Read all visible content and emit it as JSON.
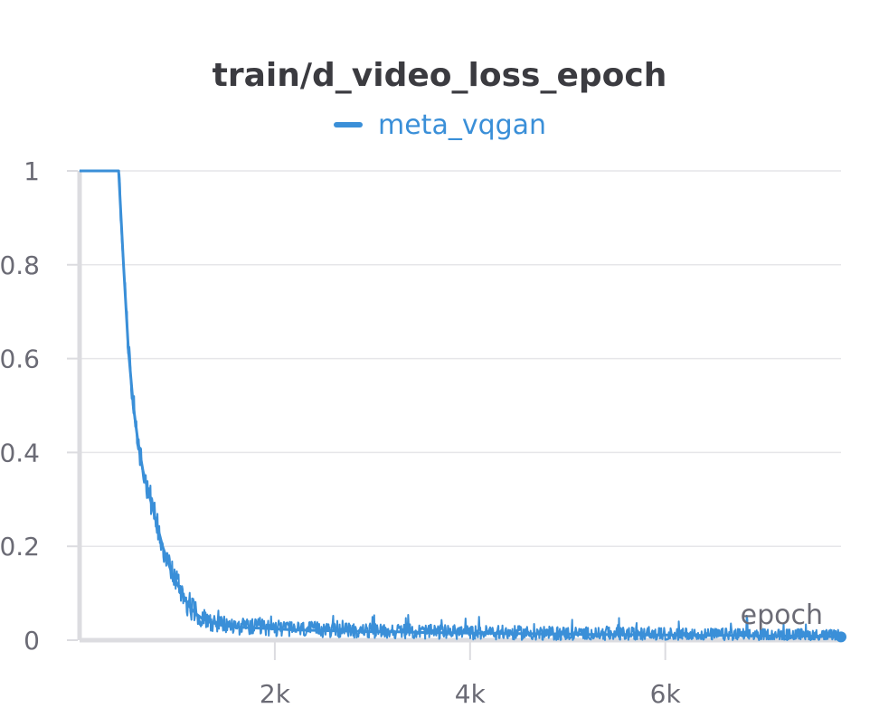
{
  "chart_data": {
    "type": "line",
    "title": "train/d_video_loss_epoch",
    "xlabel": "epoch",
    "ylabel": "",
    "xlim": [
      0,
      7800
    ],
    "ylim": [
      0,
      1
    ],
    "x_ticks": [
      2000,
      4000,
      6000
    ],
    "x_tick_labels": [
      "2k",
      "4k",
      "6k"
    ],
    "y_ticks": [
      0,
      0.2,
      0.4,
      0.6,
      0.8,
      1
    ],
    "y_tick_labels": [
      "0",
      "0.2",
      "0.4",
      "0.6",
      "0.8",
      "1"
    ],
    "grid": true,
    "legend": "top-center",
    "series": [
      {
        "name": "meta_vqgan",
        "color": "#3a8fd8",
        "x": [
          0,
          100,
          200,
          300,
          400,
          450,
          500,
          550,
          600,
          650,
          700,
          750,
          800,
          850,
          900,
          950,
          1000,
          1050,
          1100,
          1150,
          1200,
          1250,
          1300,
          1350,
          1400,
          1450,
          1500,
          1600,
          1700,
          1800,
          1900,
          2000,
          2200,
          2400,
          2600,
          2800,
          3000,
          3200,
          3400,
          3600,
          3800,
          4000,
          4200,
          4400,
          4600,
          4800,
          5000,
          5200,
          5400,
          5600,
          5800,
          6000,
          6200,
          6400,
          6600,
          6800,
          7000,
          7200,
          7400,
          7600,
          7800
        ],
        "y": [
          1.0,
          1.0,
          1.0,
          1.0,
          1.0,
          0.8,
          0.62,
          0.5,
          0.42,
          0.36,
          0.32,
          0.28,
          0.24,
          0.2,
          0.17,
          0.14,
          0.12,
          0.1,
          0.08,
          0.065,
          0.055,
          0.047,
          0.042,
          0.038,
          0.035,
          0.032,
          0.03,
          0.028,
          0.027,
          0.026,
          0.025,
          0.024,
          0.022,
          0.021,
          0.02,
          0.019,
          0.018,
          0.018,
          0.017,
          0.016,
          0.016,
          0.015,
          0.015,
          0.014,
          0.014,
          0.013,
          0.013,
          0.012,
          0.012,
          0.012,
          0.011,
          0.011,
          0.011,
          0.01,
          0.01,
          0.01,
          0.009,
          0.009,
          0.009,
          0.008,
          0.007
        ]
      }
    ]
  }
}
